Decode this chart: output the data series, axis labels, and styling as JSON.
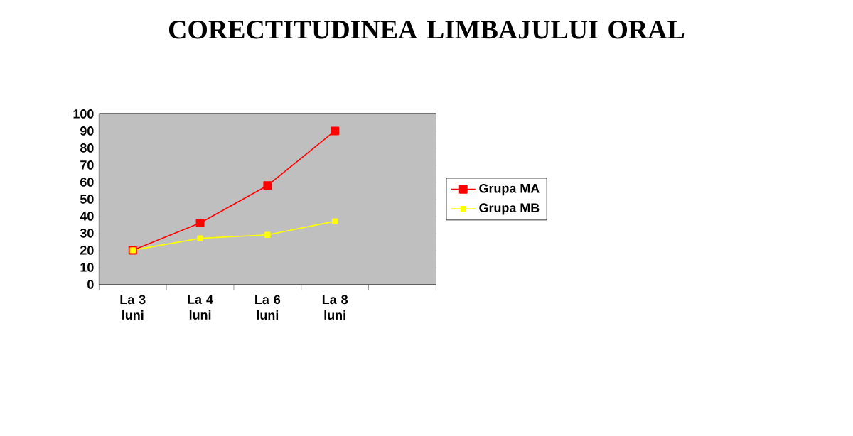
{
  "chart_data": {
    "type": "line",
    "title": "CORECTITUDINEA LIMBAJULUI ORAL",
    "categories": [
      "La 3 luni",
      "La 4 luni",
      "La 6 luni",
      "La 8 luni",
      null
    ],
    "series": [
      {
        "name": "Grupa MA",
        "color": "#ff0000",
        "values": [
          20,
          36,
          58,
          90,
          null
        ]
      },
      {
        "name": "Grupa MB",
        "color": "#ffff00",
        "values": [
          20,
          27,
          29,
          37,
          null
        ]
      }
    ],
    "ylim": [
      0,
      100
    ],
    "yticks": [
      0,
      10,
      20,
      30,
      40,
      50,
      60,
      70,
      80,
      90,
      100
    ],
    "grid": "y",
    "legend": "right",
    "marker": "square",
    "line_style": "solid"
  }
}
